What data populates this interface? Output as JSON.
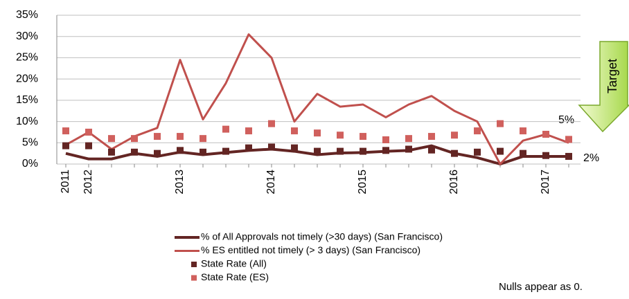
{
  "chart_data": {
    "type": "line",
    "categories": [
      "2011",
      "2012",
      null,
      null,
      null,
      "2013",
      null,
      null,
      null,
      "2014",
      null,
      null,
      null,
      "2015",
      null,
      null,
      null,
      "2016",
      null,
      null,
      null,
      "2017",
      null
    ],
    "series": [
      {
        "name": "% of All Approvals not timely (>30 days) (San Francisco)",
        "color": "#632523",
        "kind": "line",
        "width": 4,
        "values": [
          2.5,
          1.2,
          1.2,
          2.5,
          1.8,
          2.8,
          2.2,
          2.7,
          3.2,
          3.5,
          3.0,
          2.2,
          2.6,
          2.7,
          3.0,
          3.2,
          4.3,
          2.5,
          1.5,
          0,
          1.8,
          1.8,
          1.8
        ]
      },
      {
        "name": "% ES entitled not timely (> 3 days) (San Francisco)",
        "color": "#c0504d",
        "kind": "line",
        "width": 3,
        "values": [
          4.5,
          7.5,
          3.5,
          6.5,
          8.5,
          24.5,
          10.5,
          19,
          30.5,
          25,
          10,
          16.5,
          13.5,
          14,
          11,
          14,
          16,
          12.5,
          10,
          0,
          5.5,
          7,
          5
        ]
      },
      {
        "name": "State Rate (All)",
        "color": "#632523",
        "kind": "marker",
        "values": [
          4.3,
          4.3,
          2.8,
          2.8,
          2.5,
          3.2,
          2.8,
          3.0,
          3.8,
          4.0,
          3.8,
          3.0,
          3.0,
          3.0,
          3.2,
          3.5,
          3.3,
          2.5,
          2.8,
          3.0,
          2.5,
          2.0,
          1.8
        ]
      },
      {
        "name": "State Rate (ES)",
        "color": "#d0605d",
        "kind": "marker",
        "values": [
          7.8,
          7.5,
          6.0,
          6.0,
          6.5,
          6.5,
          6.0,
          8.2,
          7.8,
          9.5,
          7.8,
          7.3,
          6.8,
          6.5,
          5.7,
          6.0,
          6.5,
          6.8,
          7.8,
          9.5,
          7.8,
          7.0,
          5.8
        ]
      }
    ],
    "ylim": [
      0,
      35
    ],
    "yticks": [
      {
        "value": 0,
        "label": "0%"
      },
      {
        "value": 5,
        "label": "5%"
      },
      {
        "value": 10,
        "label": "10%"
      },
      {
        "value": 15,
        "label": "15%"
      },
      {
        "value": 20,
        "label": "20%"
      },
      {
        "value": 25,
        "label": "25%"
      },
      {
        "value": 30,
        "label": "30%"
      },
      {
        "value": 35,
        "label": "35%"
      }
    ],
    "grid": true,
    "annotations": {
      "target_es": "5%",
      "target_all": "2%",
      "target": "Target",
      "note": "Nulls appear as 0."
    }
  }
}
